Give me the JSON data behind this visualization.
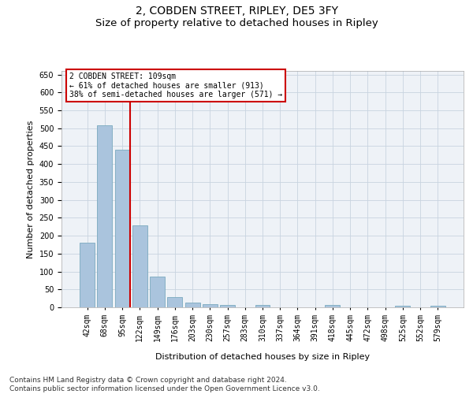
{
  "title_line1": "2, COBDEN STREET, RIPLEY, DE5 3FY",
  "title_line2": "Size of property relative to detached houses in Ripley",
  "xlabel": "Distribution of detached houses by size in Ripley",
  "ylabel": "Number of detached properties",
  "categories": [
    "42sqm",
    "68sqm",
    "95sqm",
    "122sqm",
    "149sqm",
    "176sqm",
    "203sqm",
    "230sqm",
    "257sqm",
    "283sqm",
    "310sqm",
    "337sqm",
    "364sqm",
    "391sqm",
    "418sqm",
    "445sqm",
    "472sqm",
    "498sqm",
    "525sqm",
    "552sqm",
    "579sqm"
  ],
  "values": [
    181,
    509,
    441,
    228,
    85,
    28,
    14,
    9,
    7,
    0,
    7,
    0,
    0,
    0,
    6,
    0,
    0,
    0,
    5,
    0,
    5
  ],
  "bar_color": "#aac4dd",
  "bar_edge_color": "#7aaabf",
  "vline_x_idx": 2,
  "vline_color": "#cc0000",
  "annotation_text": "2 COBDEN STREET: 109sqm\n← 61% of detached houses are smaller (913)\n38% of semi-detached houses are larger (571) →",
  "annotation_box_color": "#ffffff",
  "annotation_box_edge": "#cc0000",
  "ylim": [
    0,
    660
  ],
  "yticks": [
    0,
    50,
    100,
    150,
    200,
    250,
    300,
    350,
    400,
    450,
    500,
    550,
    600,
    650
  ],
  "bg_color": "#eef2f7",
  "grid_color": "#c8d4e0",
  "footer_text": "Contains HM Land Registry data © Crown copyright and database right 2024.\nContains public sector information licensed under the Open Government Licence v3.0.",
  "title_fontsize": 10,
  "subtitle_fontsize": 9.5,
  "label_fontsize": 8,
  "tick_fontsize": 7,
  "footer_fontsize": 6.5
}
